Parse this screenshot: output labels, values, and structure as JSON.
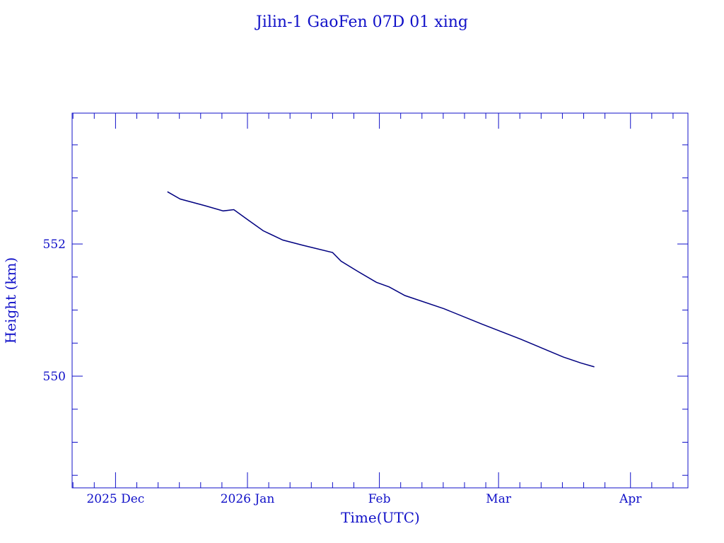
{
  "chart_data": {
    "type": "line",
    "title": "Jilin-1 GaoFen 07D 01 xing",
    "xlabel": "Time(UTC)",
    "ylabel": "Height (km)",
    "x_units": "days since 2025-12-01",
    "xlim": [
      -10.2,
      134.5
    ],
    "ylim": [
      548.31,
      553.98
    ],
    "x_ticks": [
      {
        "label": "2025 Dec",
        "day": 0
      },
      {
        "label": "2026 Jan",
        "day": 31
      },
      {
        "label": "Feb",
        "day": 62
      },
      {
        "label": "Mar",
        "day": 90
      },
      {
        "label": "Apr",
        "day": 121
      }
    ],
    "y_ticks": [
      {
        "label": "550",
        "value": 550
      },
      {
        "label": "552",
        "value": 552
      }
    ],
    "grid": false,
    "line_color": "#000080",
    "text_color": "#1010c8",
    "series": [
      {
        "name": "Height",
        "x": [
          12.2,
          15.2,
          21,
          25.3,
          27.8,
          31,
          34.7,
          39.3,
          44,
          51,
          53,
          56.8,
          61.3,
          64.3,
          68,
          77.2,
          86,
          95.2,
          105.2,
          109.3,
          112.5
        ],
        "values": [
          552.79,
          552.68,
          552.58,
          552.5,
          552.52,
          552.37,
          552.2,
          552.06,
          551.98,
          551.87,
          551.74,
          551.59,
          551.42,
          551.35,
          551.22,
          551.02,
          550.79,
          550.56,
          550.29,
          550.2,
          550.14
        ]
      }
    ]
  }
}
